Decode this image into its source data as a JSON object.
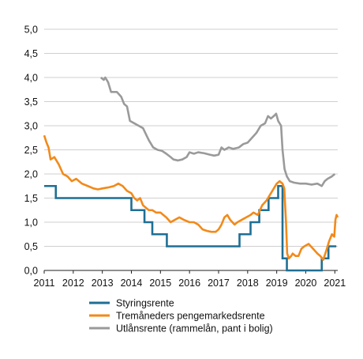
{
  "chart_data": {
    "type": "line",
    "title": "",
    "xlabel": "",
    "ylabel": "",
    "xlim": [
      2011.0,
      2021.1
    ],
    "ylim": [
      0,
      5
    ],
    "grid": "horizontal",
    "legend_position": "bottom",
    "x_ticks": [
      "2011",
      "2012",
      "2013",
      "2014",
      "2015",
      "2016",
      "2017",
      "2018",
      "2019",
      "2020",
      "2021"
    ],
    "y_ticks": [
      "0,0",
      "0,5",
      "1,0",
      "1,5",
      "2,0",
      "2,5",
      "3,0",
      "3,5",
      "4,0",
      "4,5",
      "5,0"
    ],
    "series": [
      {
        "name": "Styringsrente",
        "color": "#1f6f94",
        "step": true,
        "points": [
          [
            2011.0,
            1.75
          ],
          [
            2011.4,
            1.75
          ],
          [
            2011.4,
            1.5
          ],
          [
            2013.0,
            1.5
          ],
          [
            2014.0,
            1.5
          ],
          [
            2014.0,
            1.25
          ],
          [
            2014.45,
            1.25
          ],
          [
            2014.45,
            1.0
          ],
          [
            2014.72,
            1.0
          ],
          [
            2014.72,
            0.75
          ],
          [
            2015.22,
            0.75
          ],
          [
            2015.22,
            0.5
          ],
          [
            2016.0,
            0.5
          ],
          [
            2017.0,
            0.5
          ],
          [
            2017.72,
            0.5
          ],
          [
            2017.72,
            0.75
          ],
          [
            2018.1,
            0.75
          ],
          [
            2018.1,
            1.0
          ],
          [
            2018.4,
            1.0
          ],
          [
            2018.4,
            1.25
          ],
          [
            2018.72,
            1.25
          ],
          [
            2018.72,
            1.5
          ],
          [
            2019.05,
            1.5
          ],
          [
            2019.05,
            1.75
          ],
          [
            2019.2,
            1.75
          ],
          [
            2019.2,
            0.25
          ],
          [
            2019.35,
            0.25
          ],
          [
            2019.35,
            0.0
          ],
          [
            2020.5,
            0.0
          ],
          [
            2020.55,
            0.0
          ],
          [
            2020.55,
            0.25
          ],
          [
            2020.78,
            0.25
          ],
          [
            2020.78,
            0.5
          ],
          [
            2021.05,
            0.5
          ]
        ]
      },
      {
        "name": "Tremåneders pengemarkedsrente",
        "color": "#f28a1a",
        "step": false,
        "points": [
          [
            2011.0,
            2.8
          ],
          [
            2011.08,
            2.65
          ],
          [
            2011.15,
            2.55
          ],
          [
            2011.22,
            2.3
          ],
          [
            2011.35,
            2.35
          ],
          [
            2011.5,
            2.2
          ],
          [
            2011.65,
            2.0
          ],
          [
            2011.8,
            1.95
          ],
          [
            2011.95,
            1.85
          ],
          [
            2012.1,
            1.9
          ],
          [
            2012.3,
            1.8
          ],
          [
            2012.5,
            1.75
          ],
          [
            2012.7,
            1.7
          ],
          [
            2012.85,
            1.68
          ],
          [
            2013.0,
            1.7
          ],
          [
            2013.2,
            1.72
          ],
          [
            2013.4,
            1.75
          ],
          [
            2013.55,
            1.8
          ],
          [
            2013.7,
            1.75
          ],
          [
            2013.85,
            1.65
          ],
          [
            2014.0,
            1.6
          ],
          [
            2014.1,
            1.5
          ],
          [
            2014.2,
            1.45
          ],
          [
            2014.3,
            1.5
          ],
          [
            2014.4,
            1.35
          ],
          [
            2014.5,
            1.3
          ],
          [
            2014.6,
            1.25
          ],
          [
            2014.72,
            1.25
          ],
          [
            2014.85,
            1.2
          ],
          [
            2015.0,
            1.2
          ],
          [
            2015.1,
            1.15
          ],
          [
            2015.2,
            1.1
          ],
          [
            2015.35,
            1.0
          ],
          [
            2015.5,
            1.05
          ],
          [
            2015.65,
            1.1
          ],
          [
            2015.8,
            1.05
          ],
          [
            2016.0,
            1.0
          ],
          [
            2016.15,
            1.0
          ],
          [
            2016.3,
            0.95
          ],
          [
            2016.45,
            0.85
          ],
          [
            2016.6,
            0.82
          ],
          [
            2016.75,
            0.8
          ],
          [
            2016.9,
            0.8
          ],
          [
            2017.0,
            0.85
          ],
          [
            2017.1,
            0.95
          ],
          [
            2017.2,
            1.1
          ],
          [
            2017.3,
            1.15
          ],
          [
            2017.4,
            1.05
          ],
          [
            2017.55,
            0.95
          ],
          [
            2017.65,
            1.0
          ],
          [
            2017.8,
            1.05
          ],
          [
            2017.95,
            1.1
          ],
          [
            2018.1,
            1.15
          ],
          [
            2018.2,
            1.2
          ],
          [
            2018.35,
            1.15
          ],
          [
            2018.5,
            1.35
          ],
          [
            2018.65,
            1.45
          ],
          [
            2018.75,
            1.55
          ],
          [
            2018.9,
            1.7
          ],
          [
            2019.0,
            1.8
          ],
          [
            2019.1,
            1.85
          ],
          [
            2019.2,
            1.8
          ],
          [
            2019.26,
            1.7
          ],
          [
            2019.32,
            1.0
          ],
          [
            2019.36,
            0.35
          ],
          [
            2019.42,
            0.25
          ],
          [
            2019.5,
            0.3
          ],
          [
            2019.55,
            0.35
          ],
          [
            2019.65,
            0.3
          ],
          [
            2019.75,
            0.3
          ],
          [
            2019.85,
            0.45
          ],
          [
            2019.95,
            0.5
          ],
          [
            2020.1,
            0.55
          ],
          [
            2020.25,
            0.45
          ],
          [
            2020.4,
            0.35
          ],
          [
            2020.5,
            0.3
          ],
          [
            2020.6,
            0.22
          ],
          [
            2020.7,
            0.4
          ],
          [
            2020.8,
            0.6
          ],
          [
            2020.9,
            0.75
          ],
          [
            2020.98,
            0.7
          ],
          [
            2021.02,
            1.05
          ],
          [
            2021.06,
            1.15
          ],
          [
            2021.1,
            1.1
          ]
        ]
      },
      {
        "name": "Utlånsrente (rammelån, pant i bolig)",
        "color": "#9a9a9a",
        "step": false,
        "points": [
          [
            2012.95,
            4.0
          ],
          [
            2013.05,
            3.95
          ],
          [
            2013.1,
            4.0
          ],
          [
            2013.2,
            3.9
          ],
          [
            2013.3,
            3.7
          ],
          [
            2013.5,
            3.7
          ],
          [
            2013.65,
            3.6
          ],
          [
            2013.75,
            3.45
          ],
          [
            2013.85,
            3.4
          ],
          [
            2013.95,
            3.1
          ],
          [
            2014.1,
            3.05
          ],
          [
            2014.25,
            3.0
          ],
          [
            2014.4,
            2.95
          ],
          [
            2014.6,
            2.7
          ],
          [
            2014.75,
            2.55
          ],
          [
            2014.9,
            2.5
          ],
          [
            2015.05,
            2.48
          ],
          [
            2015.2,
            2.42
          ],
          [
            2015.35,
            2.35
          ],
          [
            2015.45,
            2.3
          ],
          [
            2015.6,
            2.28
          ],
          [
            2015.75,
            2.3
          ],
          [
            2015.9,
            2.35
          ],
          [
            2016.0,
            2.45
          ],
          [
            2016.15,
            2.42
          ],
          [
            2016.3,
            2.45
          ],
          [
            2016.5,
            2.43
          ],
          [
            2016.7,
            2.4
          ],
          [
            2016.85,
            2.38
          ],
          [
            2017.0,
            2.4
          ],
          [
            2017.1,
            2.55
          ],
          [
            2017.2,
            2.5
          ],
          [
            2017.35,
            2.55
          ],
          [
            2017.5,
            2.52
          ],
          [
            2017.7,
            2.55
          ],
          [
            2017.85,
            2.62
          ],
          [
            2018.0,
            2.65
          ],
          [
            2018.15,
            2.75
          ],
          [
            2018.3,
            2.85
          ],
          [
            2018.45,
            3.0
          ],
          [
            2018.6,
            3.05
          ],
          [
            2018.7,
            3.2
          ],
          [
            2018.8,
            3.15
          ],
          [
            2018.9,
            3.2
          ],
          [
            2018.98,
            3.25
          ],
          [
            2019.05,
            3.1
          ],
          [
            2019.15,
            3.0
          ],
          [
            2019.2,
            2.5
          ],
          [
            2019.27,
            2.1
          ],
          [
            2019.35,
            1.95
          ],
          [
            2019.45,
            1.85
          ],
          [
            2019.6,
            1.82
          ],
          [
            2019.8,
            1.8
          ],
          [
            2020.0,
            1.8
          ],
          [
            2020.2,
            1.78
          ],
          [
            2020.4,
            1.8
          ],
          [
            2020.55,
            1.75
          ],
          [
            2020.65,
            1.85
          ],
          [
            2020.75,
            1.9
          ],
          [
            2020.9,
            1.95
          ],
          [
            2021.0,
            2.0
          ]
        ]
      }
    ]
  }
}
